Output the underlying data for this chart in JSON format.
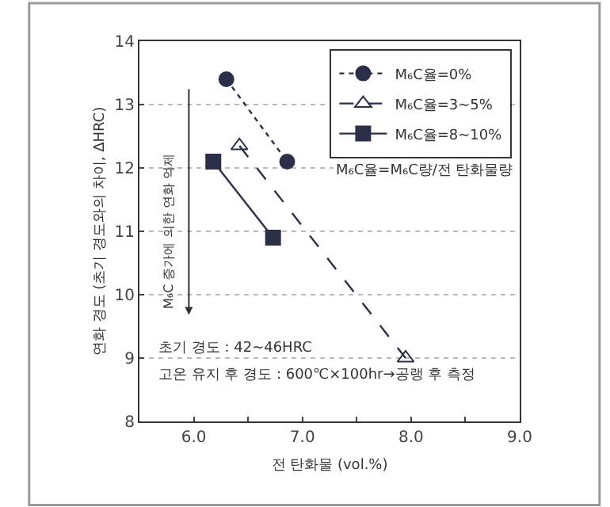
{
  "chart_data": {
    "type": "line",
    "xlabel": "전 탄화물 (vol.%)",
    "ylabel": "연화 경도 (초기 경도와의 차이, ΔHRC)",
    "xlim": [
      5.5,
      9.0
    ],
    "ylim": [
      8,
      14
    ],
    "xticks": [
      {
        "value": 6.0,
        "label": "6.0"
      },
      {
        "value": 6.5,
        "label": null
      },
      {
        "value": 7.0,
        "label": "7.0"
      },
      {
        "value": 7.5,
        "label": null
      },
      {
        "value": 8.0,
        "label": "8.0"
      },
      {
        "value": 8.5,
        "label": null
      },
      {
        "value": 9.0,
        "label": "9.0"
      }
    ],
    "yticks": [
      8,
      9,
      10,
      11,
      12,
      13,
      14
    ],
    "grid": "y",
    "legend": "top right",
    "series": [
      {
        "name": "M₆C율=0%",
        "color": "#2b2f48",
        "marker": "circle",
        "line_style": "dotted",
        "x": [
          6.3,
          6.86
        ],
        "values": [
          13.4,
          12.1
        ]
      },
      {
        "name": "M₆C율=3~5%",
        "color": "#2b2f48",
        "marker": "triangle",
        "line_style": "dashed",
        "x": [
          6.42,
          7.95
        ],
        "values": [
          12.35,
          9.0
        ]
      },
      {
        "name": "M₆C율=8~10%",
        "color": "#2b2f48",
        "marker": "square",
        "line_style": "solid",
        "x": [
          6.18,
          6.73
        ],
        "values": [
          12.1,
          10.9
        ]
      }
    ],
    "annotations": [
      "M₆C율=M₆C량/전 탄화물량",
      "M₆C 증가에 의한 연화 억제",
      "초기 경도 : 42~46HRC",
      "고온 유지 후 경도 : 600℃×100hr→공랭 후 측정"
    ]
  }
}
